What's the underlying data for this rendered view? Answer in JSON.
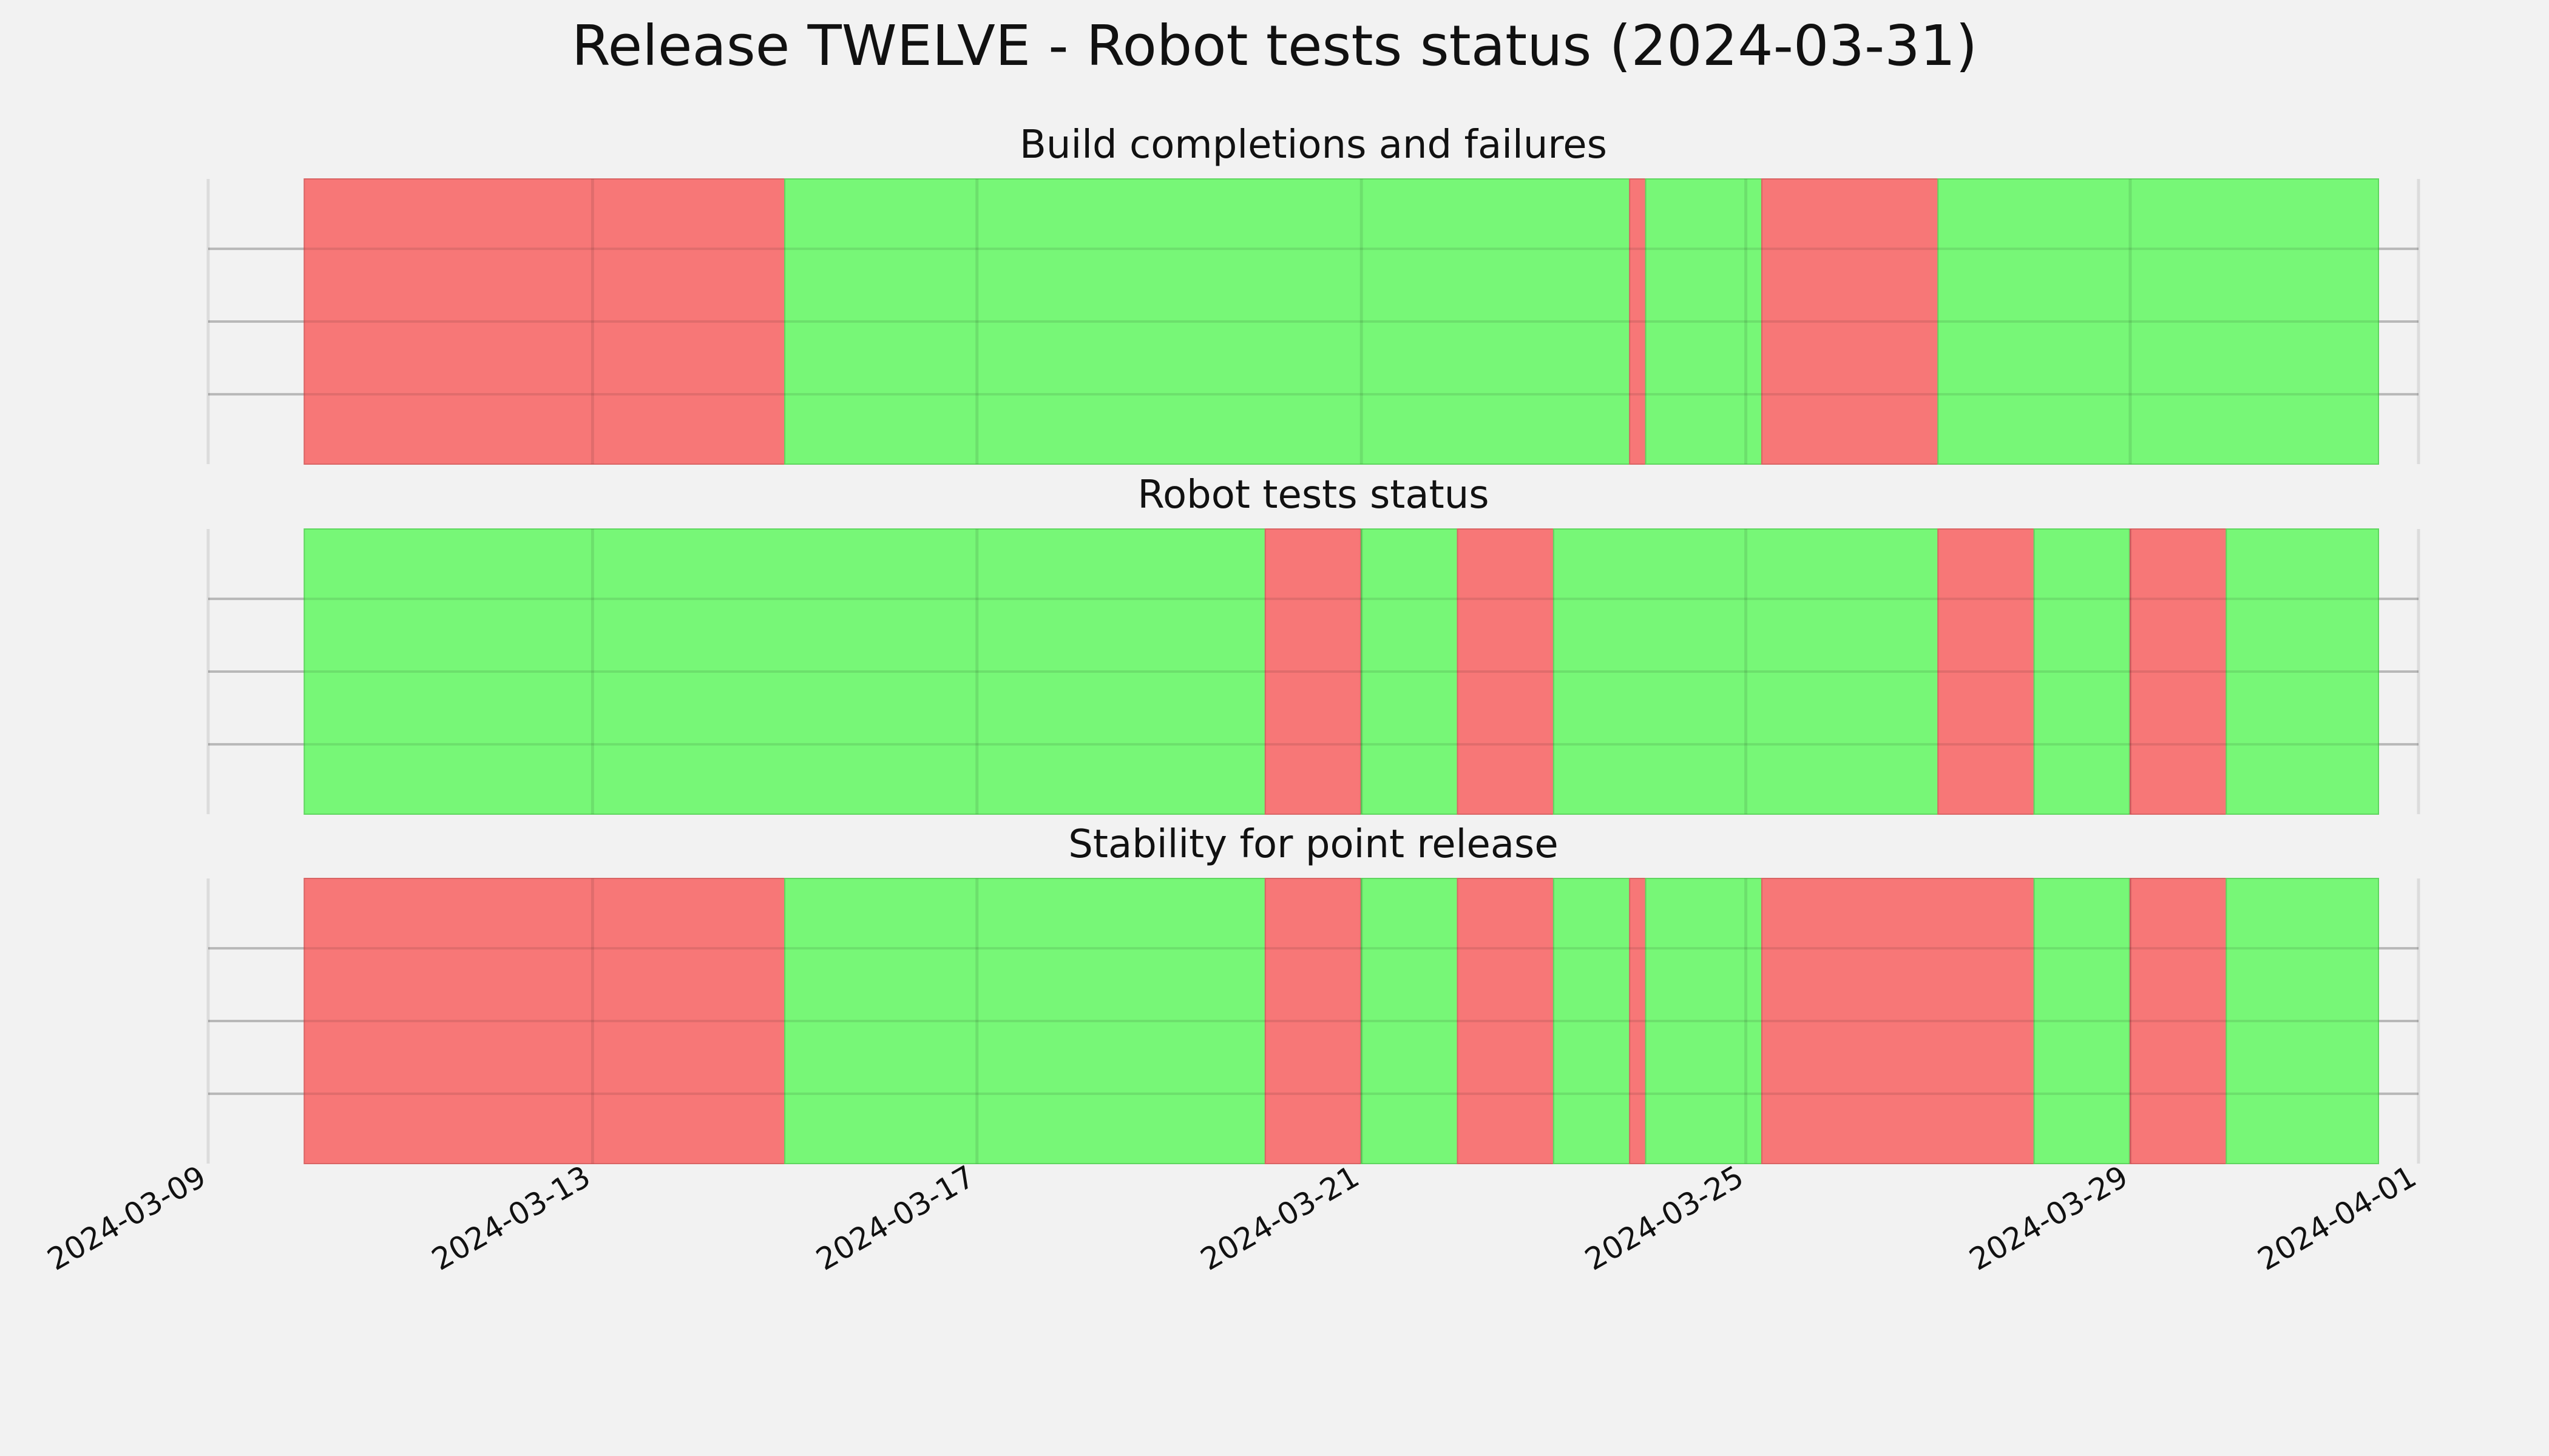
{
  "chart_data": {
    "type": "timeline",
    "title": "Release TWELVE - Robot tests status (2024-03-31)",
    "xlim": [
      "2024-03-09",
      "2024-04-01"
    ],
    "x_ticks": [
      "2024-03-09",
      "2024-03-13",
      "2024-03-17",
      "2024-03-21",
      "2024-03-25",
      "2024-03-29",
      "2024-04-01"
    ],
    "colors": {
      "pass": "#77f777",
      "fail": "#f77777",
      "grid": "#cbcbcb",
      "background": "#f2f2f2"
    },
    "grid": true,
    "panels": [
      {
        "title": "Build completions and failures",
        "segments": [
          {
            "start": "2024-03-10 00:00",
            "end": "2024-03-15 00:00",
            "status": "fail"
          },
          {
            "start": "2024-03-15 00:00",
            "end": "2024-03-23 19:00",
            "status": "pass"
          },
          {
            "start": "2024-03-23 19:00",
            "end": "2024-03-23 23:00",
            "status": "fail"
          },
          {
            "start": "2024-03-23 23:00",
            "end": "2024-03-25 04:00",
            "status": "pass"
          },
          {
            "start": "2024-03-25 04:00",
            "end": "2024-03-27 00:00",
            "status": "fail"
          },
          {
            "start": "2024-03-27 00:00",
            "end": "2024-03-31 14:00",
            "status": "pass"
          }
        ]
      },
      {
        "title": "Robot tests status",
        "segments": [
          {
            "start": "2024-03-10 00:00",
            "end": "2024-03-20 00:00",
            "status": "pass"
          },
          {
            "start": "2024-03-20 00:00",
            "end": "2024-03-21 00:00",
            "status": "fail"
          },
          {
            "start": "2024-03-21 00:00",
            "end": "2024-03-22 00:00",
            "status": "pass"
          },
          {
            "start": "2024-03-22 00:00",
            "end": "2024-03-23 00:00",
            "status": "fail"
          },
          {
            "start": "2024-03-23 00:00",
            "end": "2024-03-27 00:00",
            "status": "pass"
          },
          {
            "start": "2024-03-27 00:00",
            "end": "2024-03-28 00:00",
            "status": "fail"
          },
          {
            "start": "2024-03-28 00:00",
            "end": "2024-03-29 00:00",
            "status": "pass"
          },
          {
            "start": "2024-03-29 00:00",
            "end": "2024-03-30 00:00",
            "status": "fail"
          },
          {
            "start": "2024-03-30 00:00",
            "end": "2024-03-31 14:00",
            "status": "pass"
          }
        ]
      },
      {
        "title": "Stability for point release",
        "segments": [
          {
            "start": "2024-03-10 00:00",
            "end": "2024-03-15 00:00",
            "status": "fail"
          },
          {
            "start": "2024-03-15 00:00",
            "end": "2024-03-20 00:00",
            "status": "pass"
          },
          {
            "start": "2024-03-20 00:00",
            "end": "2024-03-21 00:00",
            "status": "fail"
          },
          {
            "start": "2024-03-21 00:00",
            "end": "2024-03-22 00:00",
            "status": "pass"
          },
          {
            "start": "2024-03-22 00:00",
            "end": "2024-03-23 00:00",
            "status": "fail"
          },
          {
            "start": "2024-03-23 00:00",
            "end": "2024-03-23 19:00",
            "status": "pass"
          },
          {
            "start": "2024-03-23 19:00",
            "end": "2024-03-23 23:00",
            "status": "fail"
          },
          {
            "start": "2024-03-23 23:00",
            "end": "2024-03-25 04:00",
            "status": "pass"
          },
          {
            "start": "2024-03-25 04:00",
            "end": "2024-03-28 00:00",
            "status": "fail"
          },
          {
            "start": "2024-03-28 00:00",
            "end": "2024-03-29 00:00",
            "status": "pass"
          },
          {
            "start": "2024-03-29 00:00",
            "end": "2024-03-30 00:00",
            "status": "fail"
          },
          {
            "start": "2024-03-30 00:00",
            "end": "2024-03-31 14:00",
            "status": "pass"
          }
        ]
      }
    ]
  }
}
